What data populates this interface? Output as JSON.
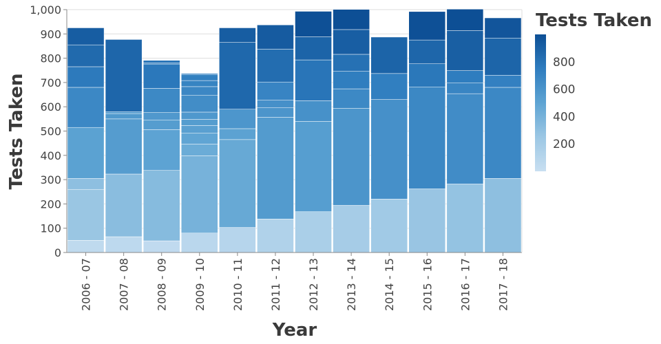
{
  "chart_data": {
    "type": "bar",
    "stacked": true,
    "xlabel": "Year",
    "ylabel": "Tests Taken",
    "ylim": [
      0,
      1000
    ],
    "yticks": [
      "0",
      "100",
      "200",
      "300",
      "400",
      "500",
      "600",
      "700",
      "800",
      "900",
      "1,000"
    ],
    "grid": true,
    "categories": [
      "2006 - 07",
      "2007 - 08",
      "2008 - 09",
      "2009 - 10",
      "2010 - 11",
      "2011 - 12",
      "2012 - 13",
      "2013 - 14",
      "2014 - 15",
      "2015 - 16",
      "2016 - 17",
      "2017 - 18"
    ],
    "stacks": [
      [
        50,
        210,
        45,
        210,
        165,
        85,
        90,
        70
      ],
      [
        65,
        258,
        227,
        22,
        8,
        297
      ],
      [
        48,
        290,
        168,
        40,
        30,
        100,
        100,
        5,
        10
      ],
      [
        80,
        318,
        48,
        45,
        32,
        25,
        30,
        70,
        35,
        25,
        25,
        4
      ],
      [
        103,
        362,
        45,
        80,
        275,
        60
      ],
      [
        138,
        419,
        40,
        30,
        75,
        135,
        100
      ],
      [
        168,
        372,
        85,
        168,
        95,
        105
      ],
      [
        194,
        400,
        80,
        72,
        70,
        102,
        83
      ],
      [
        220,
        410,
        107,
        150
      ],
      [
        262,
        420,
        95,
        98,
        117
      ],
      [
        282,
        372,
        45,
        50,
        165,
        88
      ],
      [
        305,
        375,
        50,
        153,
        83
      ]
    ],
    "legend": {
      "title": "Tests Taken",
      "type": "color-gradient",
      "position": "right",
      "labels": [
        "800",
        "600",
        "400",
        "200"
      ],
      "domain": [
        0,
        1000
      ],
      "colors": [
        "#c8dff1",
        "#9cc7e4",
        "#5ea4d3",
        "#2f7dbf",
        "#0d4f95"
      ]
    }
  }
}
